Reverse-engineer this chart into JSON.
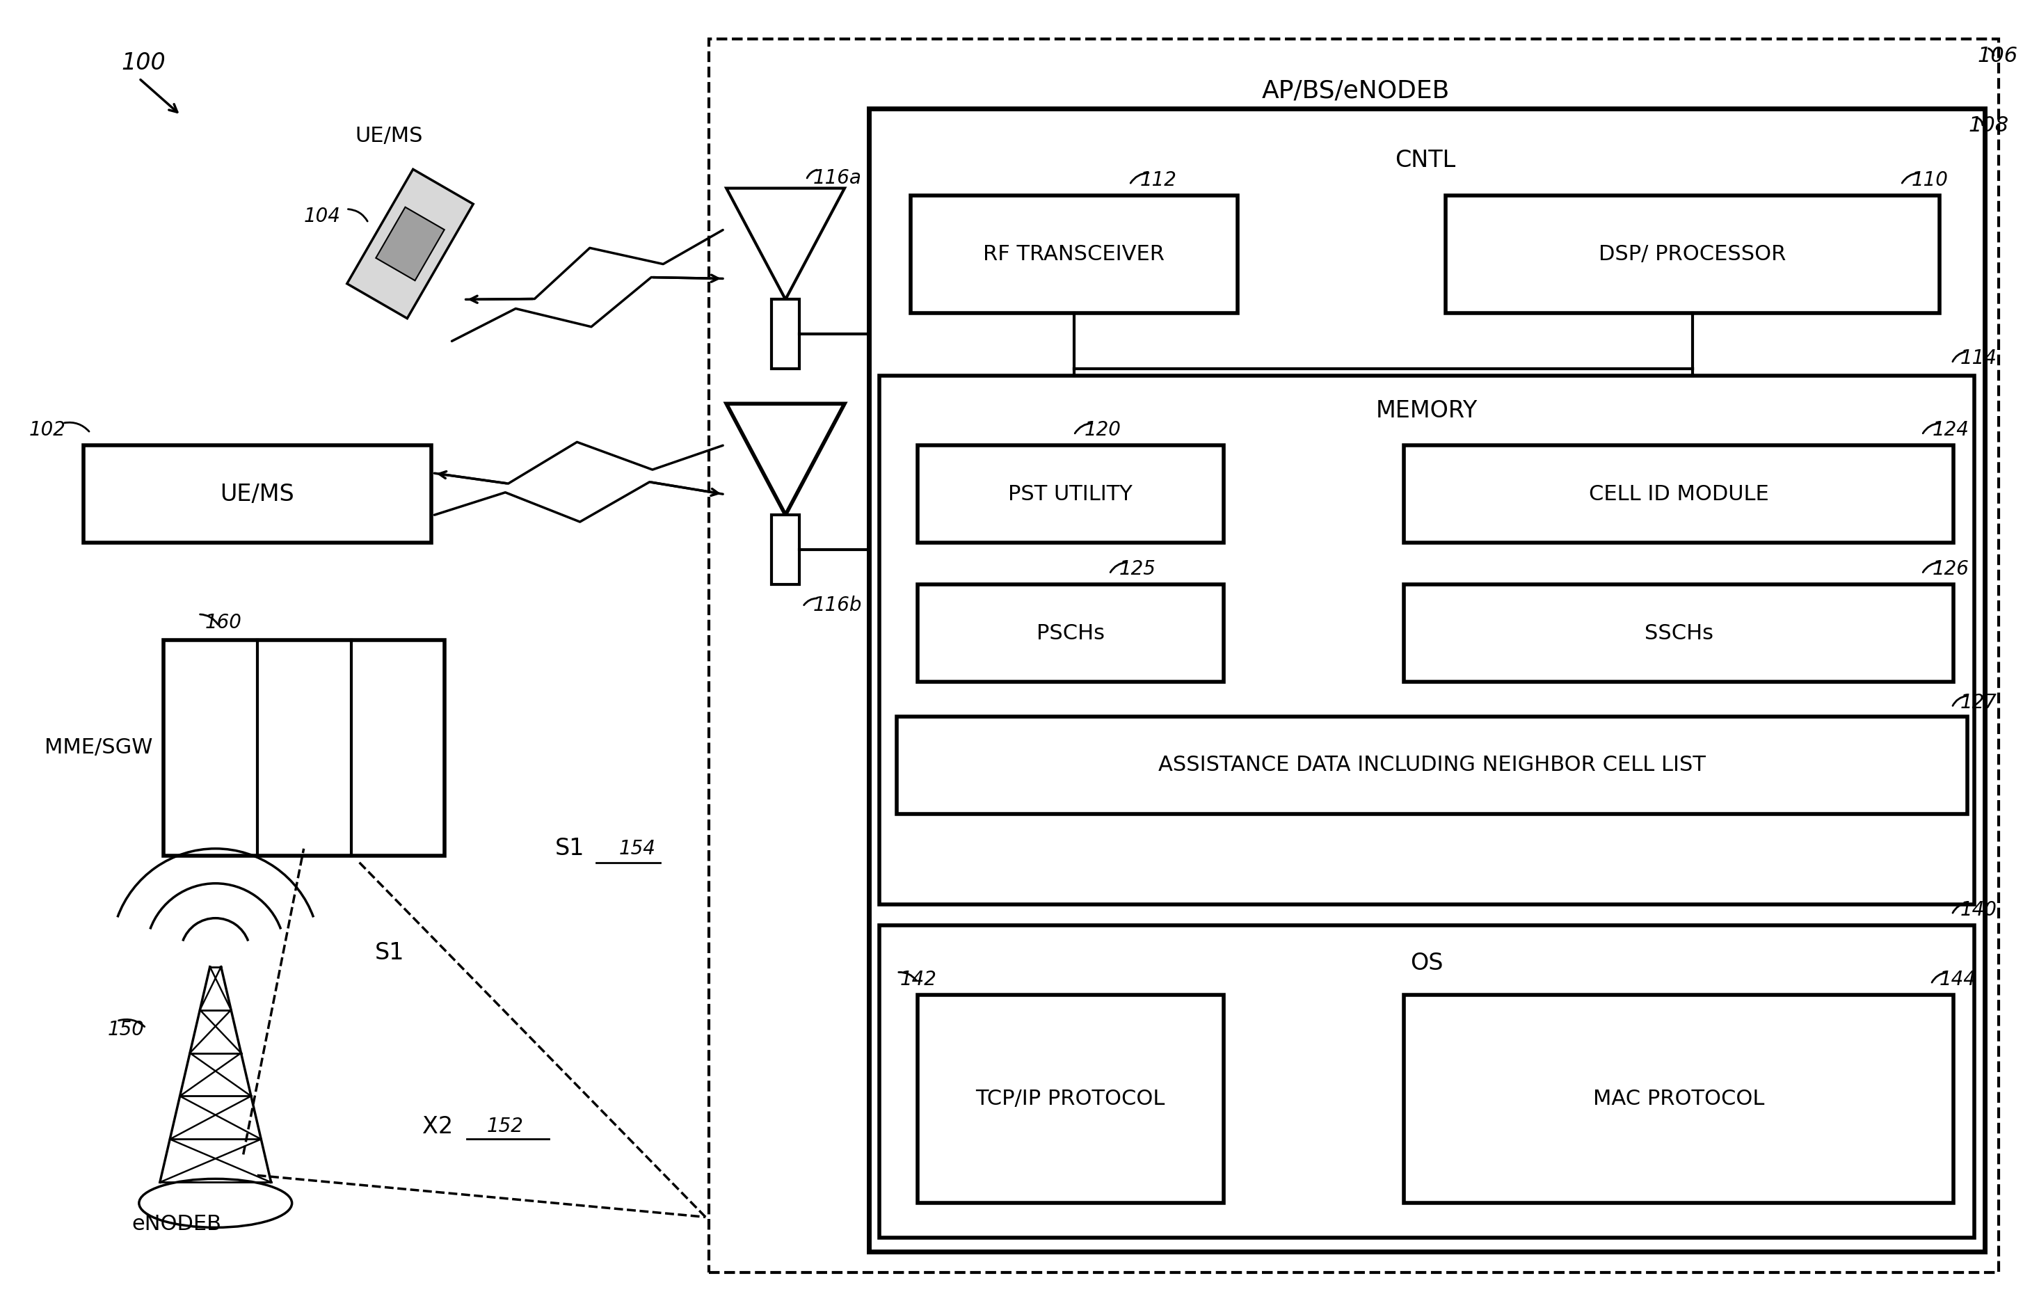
{
  "fig_width": 29.08,
  "fig_height": 18.7,
  "bg_color": "#ffffff",
  "lc": "#000000",
  "label_100": "100",
  "label_102": "102",
  "label_104": "104",
  "label_106": "106",
  "label_108": "108",
  "label_110": "110",
  "label_112": "112",
  "label_114": "114",
  "label_116a": "116a",
  "label_116b": "116b",
  "label_120": "120",
  "label_124": "124",
  "label_125": "125",
  "label_126": "126",
  "label_127": "127",
  "label_140": "140",
  "label_142": "142",
  "label_144": "144",
  "label_150": "150",
  "label_152": "152",
  "label_154": "154",
  "label_160": "160",
  "text_uems_104": "UE/MS",
  "text_uems_102": "UE/MS",
  "text_apbs": "AP/BS/eNODEB",
  "text_cntl": "CNTL",
  "text_rf": "RF TRANSCEIVER",
  "text_dsp": "DSP/ PROCESSOR",
  "text_memory": "MEMORY",
  "text_pst": "PST UTILITY",
  "text_cellid": "CELL ID MODULE",
  "text_pschs": "PSCHs",
  "text_sschs": "SSCHs",
  "text_assist": "ASSISTANCE DATA INCLUDING NEIGHBOR CELL LIST",
  "text_os": "OS",
  "text_tcp": "TCP/IP PROTOCOL",
  "text_mac": "MAC PROTOCOL",
  "text_mmeSgw": "MME/SGW",
  "text_eNodEB": "eNODEB",
  "text_s1": "S1",
  "text_x2": "X2"
}
